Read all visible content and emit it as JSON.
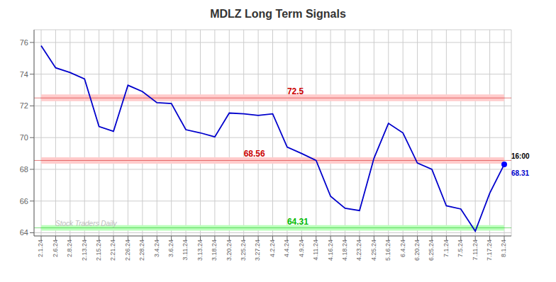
{
  "chart_data": {
    "type": "line",
    "title": "MDLZ Long Term Signals",
    "categories": [
      "2.1.24",
      "2.6.24",
      "2.8.24",
      "2.13.24",
      "2.15.24",
      "2.21.24",
      "2.26.24",
      "2.28.24",
      "3.4.24",
      "3.6.24",
      "3.11.24",
      "3.13.24",
      "3.18.24",
      "3.20.24",
      "3.25.24",
      "3.27.24",
      "4.2.24",
      "4.4.24",
      "4.9.24",
      "4.11.24",
      "4.16.24",
      "4.18.24",
      "4.23.24",
      "4.25.24",
      "5.16.24",
      "6.4.24",
      "6.20.24",
      "6.25.24",
      "7.1.24",
      "7.5.24",
      "7.11.24",
      "7.17.24",
      "8.1.24"
    ],
    "values": [
      75.8,
      74.4,
      74.1,
      73.7,
      70.7,
      70.4,
      73.3,
      72.9,
      72.2,
      72.15,
      70.5,
      70.3,
      70.05,
      71.55,
      71.5,
      71.4,
      71.5,
      69.4,
      69.0,
      68.56,
      66.3,
      65.55,
      65.4,
      68.7,
      70.9,
      70.3,
      68.4,
      68.0,
      65.7,
      65.5,
      64.1,
      66.5,
      68.31
    ],
    "color": "#0000cc",
    "ylim": [
      63.8,
      76.8
    ],
    "yticks": [
      64,
      66,
      68,
      70,
      72,
      74,
      76
    ],
    "grid": true,
    "bands": [
      {
        "from": 72.3,
        "to": 72.72,
        "color": "#ffcccc"
      },
      {
        "from": 68.36,
        "to": 68.76,
        "color": "#ffcccc"
      },
      {
        "from": 64.14,
        "to": 64.48,
        "color": "#bbffbb"
      }
    ],
    "levels": [
      {
        "value": 72.5,
        "label": "72.5",
        "color": "#cc0000",
        "at": "4.4.24"
      },
      {
        "value": 68.56,
        "label": "68.56",
        "color": "#cc0000",
        "at": "3.25.24"
      },
      {
        "value": 64.31,
        "label": "64.31",
        "color": "#00bb00",
        "at": "4.4.24"
      }
    ],
    "last_point": {
      "color": "#0000ff",
      "time_label": "16:00",
      "time_color": "#000000",
      "value_label": "68.31",
      "value_color": "#0000cc"
    },
    "watermark": {
      "text": "Stock Traders Daily",
      "color": "#bbbbbb"
    }
  }
}
